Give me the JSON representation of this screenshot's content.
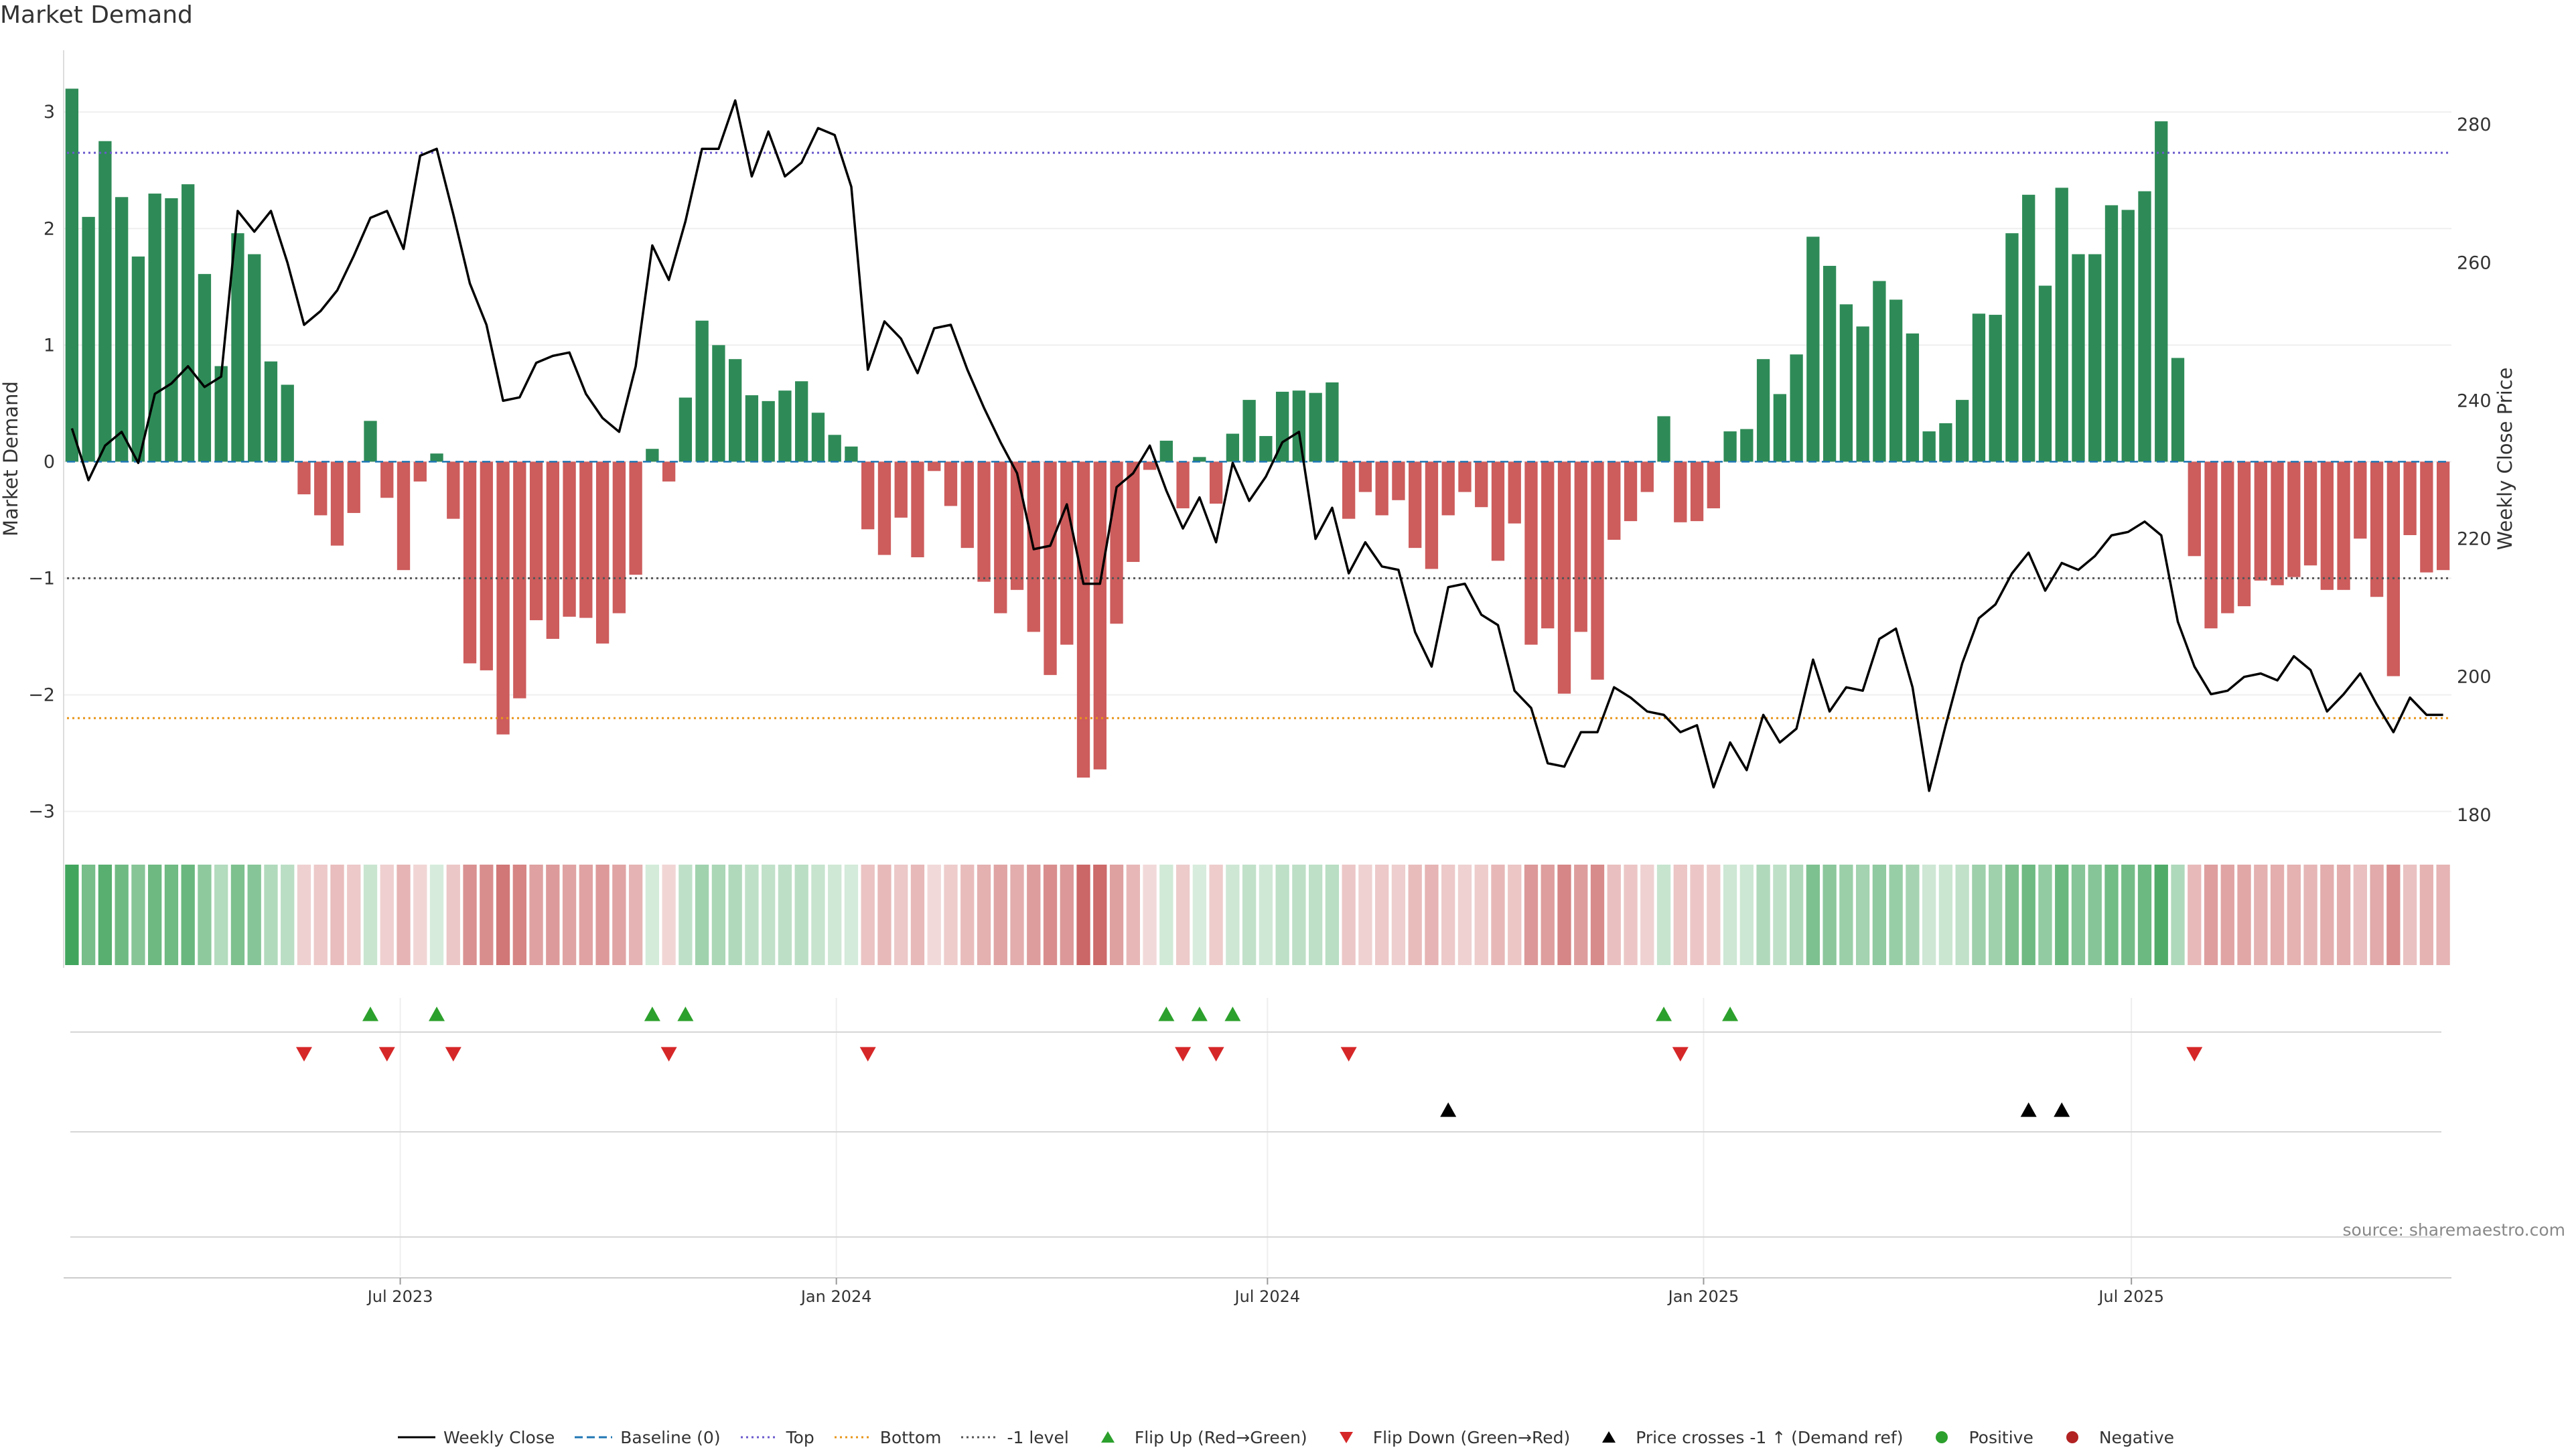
{
  "title": "Market Demand",
  "source": "source: sharemaestro.com",
  "chart_data": {
    "type": "bar",
    "title": "Market Demand",
    "xlabel": "",
    "ylabel": "Market Demand",
    "y2label": "Weekly Close Price",
    "ylim": [
      -3.25,
      3.3
    ],
    "y2lim": [
      176.3,
      286.9
    ],
    "yticks": [
      3,
      2,
      1,
      0,
      -1,
      -2,
      -3
    ],
    "y2ticks": [
      280,
      260,
      240,
      220,
      200,
      180
    ],
    "xtick_labels": [
      "Jul 2023",
      "Jan 2024",
      "Jul 2024",
      "Jan 2025",
      "Jul 2025"
    ],
    "xtick_weeks": [
      20.3,
      46.6,
      72.6,
      98.9,
      124.7
    ],
    "reference_lines": {
      "top": 2.65,
      "bottom": -2.2,
      "minus_one": -1.0,
      "baseline": 0
    },
    "demand": [
      3.2,
      2.1,
      2.75,
      2.27,
      1.76,
      2.3,
      2.26,
      2.38,
      1.61,
      0.82,
      1.96,
      1.78,
      0.86,
      0.66,
      -0.28,
      -0.46,
      -0.72,
      -0.44,
      0.35,
      -0.31,
      -0.93,
      -0.17,
      0.07,
      -0.49,
      -1.73,
      -1.79,
      -2.34,
      -2.03,
      -1.36,
      -1.52,
      -1.33,
      -1.34,
      -1.56,
      -1.3,
      -0.97,
      0.11,
      -0.17,
      0.55,
      1.21,
      1.0,
      0.88,
      0.57,
      0.52,
      0.61,
      0.69,
      0.42,
      0.23,
      0.13,
      -0.58,
      -0.8,
      -0.48,
      -0.82,
      -0.08,
      -0.38,
      -0.74,
      -1.03,
      -1.3,
      -1.1,
      -1.46,
      -1.83,
      -1.57,
      -2.71,
      -2.64,
      -1.39,
      -0.86,
      -0.07,
      0.18,
      -0.4,
      0.04,
      -0.36,
      0.24,
      0.53,
      0.22,
      0.6,
      0.61,
      0.59,
      0.68,
      -0.49,
      -0.26,
      -0.46,
      -0.33,
      -0.74,
      -0.92,
      -0.46,
      -0.26,
      -0.39,
      -0.85,
      -0.53,
      -1.57,
      -1.43,
      -1.99,
      -1.46,
      -1.87,
      -0.67,
      -0.51,
      -0.26,
      0.39,
      -0.52,
      -0.51,
      -0.4,
      0.26,
      0.28,
      0.88,
      0.58,
      0.92,
      1.93,
      1.68,
      1.35,
      1.16,
      1.55,
      1.39,
      1.1,
      0.26,
      0.33,
      0.53,
      1.27,
      1.26,
      1.96,
      2.29,
      1.51,
      2.35,
      1.78,
      1.78,
      2.2,
      2.16,
      2.32,
      2.92,
      0.89,
      -0.81,
      -1.43,
      -1.3,
      -1.24,
      -1.02,
      -1.06,
      -0.99,
      -0.89,
      -1.1,
      -1.1,
      -0.66,
      -1.16,
      -1.84,
      -0.63,
      -0.95,
      -0.93
    ],
    "weekly_close": [
      236,
      228.5,
      233.5,
      235.5,
      231,
      241,
      242.5,
      245,
      242,
      243.5,
      267.5,
      264.5,
      267.5,
      260,
      251,
      253,
      256,
      261,
      266.5,
      267.5,
      262,
      275.5,
      276.5,
      267,
      257,
      251,
      240,
      240.5,
      245.5,
      246.5,
      247,
      241,
      237.5,
      235.5,
      245,
      262.5,
      257.5,
      266,
      276.5,
      276.5,
      283.5,
      272.5,
      279,
      272.5,
      274.5,
      279.5,
      278.5,
      271,
      244.5,
      251.5,
      249,
      244,
      250.5,
      251,
      244.5,
      239,
      234,
      229.5,
      218.5,
      219,
      225,
      213.5,
      213.5,
      227.5,
      229.5,
      233.5,
      227,
      221.5,
      226,
      219.5,
      231,
      225.5,
      229,
      234,
      235.5,
      220,
      224.5,
      215,
      219.5,
      216,
      215.5,
      206.5,
      201.5,
      213,
      213.5,
      209,
      207.5,
      198,
      195.5,
      187.5,
      187,
      192,
      192,
      198.5,
      197,
      195,
      194.5,
      192,
      193,
      184,
      190.5,
      186.5,
      194.5,
      190.5,
      192.5,
      202.5,
      195,
      198.5,
      198,
      205.5,
      207,
      198.5,
      183.5,
      193,
      202,
      208.5,
      210.5,
      215,
      218,
      212.5,
      216.5,
      215.5,
      217.5,
      220.5,
      221,
      222.5,
      220.5,
      208,
      201.5,
      197.5,
      198,
      200,
      200.5,
      199.5,
      203,
      201,
      195,
      197.5,
      200.5,
      196,
      192,
      197,
      194.5,
      194.5
    ],
    "markers": {
      "flip_up_weeks": [
        18,
        22,
        35,
        37,
        66,
        68,
        70,
        96,
        100
      ],
      "flip_down_weeks": [
        14,
        19,
        23,
        36,
        48,
        67,
        69,
        77,
        97,
        128
      ],
      "price_cross_weeks": [
        83,
        118,
        120
      ]
    },
    "legend": [
      {
        "label": "Weekly Close",
        "kind": "line",
        "color": "#000000"
      },
      {
        "label": "Baseline (0)",
        "kind": "dash",
        "color": "#1f77b4"
      },
      {
        "label": "Top",
        "kind": "dot",
        "color": "#6a5acd"
      },
      {
        "label": "Bottom",
        "kind": "dot",
        "color": "#e8961a"
      },
      {
        "label": "-1 level",
        "kind": "dot",
        "color": "#555555"
      },
      {
        "label": "Flip Up (Red→Green)",
        "kind": "up",
        "color": "#2ca02c"
      },
      {
        "label": "Flip Down (Green→Red)",
        "kind": "down",
        "color": "#d62728"
      },
      {
        "label": "Price crosses -1 ↑ (Demand ref)",
        "kind": "up",
        "color": "#000000"
      },
      {
        "label": "Positive",
        "kind": "circle",
        "color": "#2ca02c"
      },
      {
        "label": "Negative",
        "kind": "circle",
        "color": "#b22222"
      }
    ],
    "colors": {
      "positive_bar": "#2e8b57",
      "negative_bar": "#cd5c5c",
      "flip_up": "#2ca02c",
      "flip_down": "#d62728",
      "price_cross": "#000000",
      "price_line": "#000000"
    }
  }
}
